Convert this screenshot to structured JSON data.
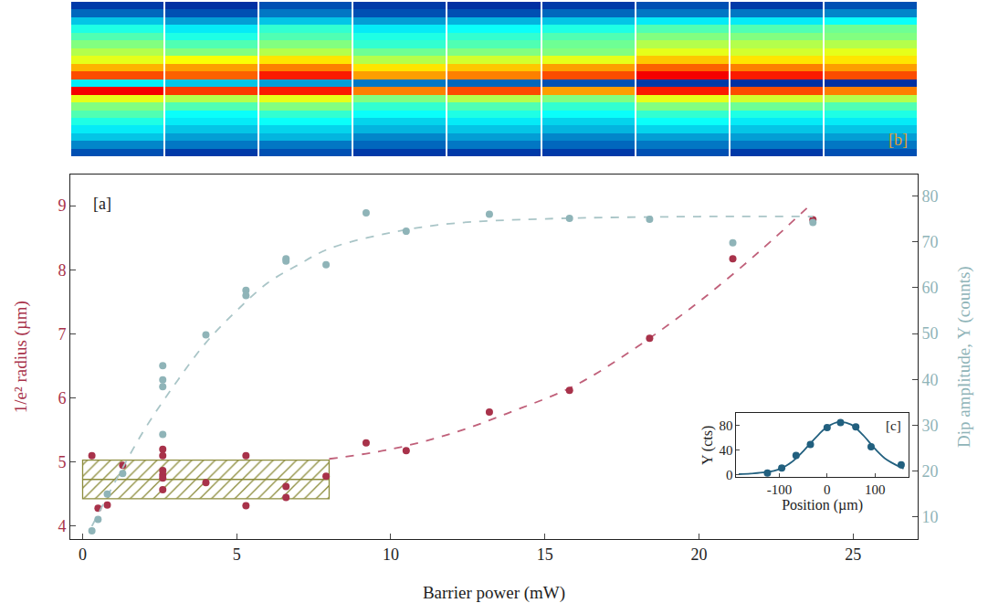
{
  "chart_data": [
    {
      "type": "heatmap",
      "annotations": [
        "[b]"
      ],
      "zlim": [
        0,
        1
      ],
      "cells": [
        [
          0.12,
          0.1,
          0.15,
          0.12,
          0.1,
          0.12,
          0.15,
          0.12,
          0.15
        ],
        [
          0.18,
          0.15,
          0.2,
          0.15,
          0.15,
          0.18,
          0.2,
          0.2,
          0.22
        ],
        [
          0.3,
          0.25,
          0.3,
          0.25,
          0.28,
          0.3,
          0.35,
          0.35,
          0.38
        ],
        [
          0.4,
          0.35,
          0.42,
          0.35,
          0.38,
          0.4,
          0.45,
          0.45,
          0.48
        ],
        [
          0.45,
          0.4,
          0.45,
          0.4,
          0.42,
          0.45,
          0.5,
          0.5,
          0.5
        ],
        [
          0.5,
          0.45,
          0.5,
          0.42,
          0.45,
          0.48,
          0.55,
          0.55,
          0.55
        ],
        [
          0.55,
          0.5,
          0.55,
          0.48,
          0.5,
          0.5,
          0.6,
          0.58,
          0.6
        ],
        [
          0.6,
          0.62,
          0.65,
          0.55,
          0.58,
          0.6,
          0.68,
          0.65,
          0.65
        ],
        [
          0.7,
          0.72,
          0.75,
          0.65,
          0.68,
          0.72,
          0.78,
          0.75,
          0.72
        ],
        [
          0.8,
          0.78,
          0.85,
          0.72,
          0.75,
          0.8,
          0.88,
          0.85,
          0.8
        ],
        [
          0.35,
          0.3,
          0.25,
          0.2,
          0.18,
          0.15,
          0.12,
          0.1,
          0.1
        ],
        [
          0.88,
          0.82,
          0.85,
          0.75,
          0.8,
          0.72,
          0.85,
          0.8,
          0.75
        ],
        [
          0.6,
          0.55,
          0.6,
          0.5,
          0.55,
          0.5,
          0.6,
          0.58,
          0.55
        ],
        [
          0.5,
          0.45,
          0.5,
          0.42,
          0.45,
          0.42,
          0.5,
          0.48,
          0.45
        ],
        [
          0.45,
          0.38,
          0.42,
          0.38,
          0.4,
          0.38,
          0.42,
          0.4,
          0.4
        ],
        [
          0.4,
          0.35,
          0.38,
          0.32,
          0.35,
          0.32,
          0.38,
          0.35,
          0.35
        ],
        [
          0.35,
          0.3,
          0.32,
          0.28,
          0.3,
          0.28,
          0.32,
          0.3,
          0.3
        ],
        [
          0.3,
          0.25,
          0.28,
          0.22,
          0.25,
          0.22,
          0.25,
          0.25,
          0.25
        ],
        [
          0.22,
          0.2,
          0.2,
          0.18,
          0.2,
          0.18,
          0.2,
          0.2,
          0.2
        ],
        [
          0.15,
          0.12,
          0.15,
          0.12,
          0.12,
          0.12,
          0.15,
          0.12,
          0.15
        ]
      ]
    },
    {
      "type": "scatter",
      "annotations": [
        "[a]"
      ],
      "grid": false,
      "x_label": "Barrier power (mW)",
      "y_label": "1/e² radius (µm)",
      "y2_label": "Dip amplitude, Υ (counts)",
      "xlim": [
        -0.4,
        27.1
      ],
      "xticks": [
        0,
        5,
        10,
        15,
        20,
        25
      ],
      "ylim": [
        3.8,
        9.48
      ],
      "yticks": [
        4,
        5,
        6,
        7,
        8,
        9
      ],
      "y2lim": [
        5.2,
        84.6
      ],
      "y2ticks": [
        10,
        20,
        30,
        40,
        50,
        60,
        70,
        80
      ],
      "series": [
        {
          "type": "band",
          "marker": "hatch",
          "color": "#8c8c3c",
          "x": [
            0,
            8
          ],
          "y": [
            4.43,
            5.03
          ],
          "center": 4.73
        },
        {
          "type": "line",
          "line_style": "dash",
          "color": "#c0607a",
          "x": [
            8,
            10,
            12,
            14,
            16,
            18,
            20,
            22,
            23.7
          ],
          "values": [
            5.05,
            5.2,
            5.45,
            5.8,
            6.2,
            6.8,
            7.5,
            8.3,
            9.05
          ]
        },
        {
          "type": "line",
          "line_style": "dash",
          "color": "#a9c5c7",
          "axis": "y2",
          "x": [
            0.3,
            1,
            2,
            3,
            4,
            5,
            6,
            7,
            8,
            10,
            12,
            15,
            20,
            23.7
          ],
          "values": [
            8,
            17,
            29,
            39,
            48,
            55,
            61,
            65,
            68.5,
            72,
            74,
            75,
            75.5,
            75.5
          ]
        },
        {
          "type": "scatter",
          "marker": "circle",
          "color": "#a8324a",
          "x": [
            0.3,
            0.5,
            0.8,
            1.3,
            2.6,
            2.6,
            2.6,
            2.6,
            2.6,
            2.6,
            4,
            5.3,
            5.3,
            6.6,
            6.6,
            7.9,
            9.2,
            10.5,
            13.2,
            15.8,
            18.4,
            21.1,
            23.7
          ],
          "values": [
            5.1,
            4.28,
            4.33,
            4.95,
            5.2,
            5.1,
            4.87,
            4.8,
            4.75,
            4.57,
            4.68,
            5.1,
            4.32,
            4.62,
            4.45,
            4.78,
            5.3,
            5.18,
            5.78,
            6.12,
            6.93,
            8.17,
            8.78
          ]
        },
        {
          "type": "scatter",
          "marker": "circle",
          "color": "#8fb4b8",
          "axis": "y2",
          "x": [
            0.3,
            0.5,
            0.8,
            1.3,
            2.6,
            2.6,
            2.6,
            2.6,
            4,
            5.3,
            5.3,
            6.6,
            6.6,
            7.9,
            9.2,
            10.5,
            13.2,
            15.8,
            18.4,
            21.1,
            23.7
          ],
          "values": [
            7,
            9.5,
            15,
            19.5,
            28,
            38.4,
            39.9,
            43,
            49.7,
            59.4,
            58.3,
            66.3,
            65.8,
            65,
            76.3,
            72.3,
            76,
            75.1,
            74.9,
            69.8,
            74.2
          ]
        }
      ]
    },
    {
      "type": "scatter",
      "annotations": [
        "[c]"
      ],
      "grid": false,
      "x_label": "Position (µm)",
      "y_label": "Υ (cts)",
      "xlim": [
        -190,
        170
      ],
      "xticks": [
        -100,
        0,
        100
      ],
      "ylim": [
        -4,
        99
      ],
      "yticks": [
        0,
        40,
        80
      ],
      "series": [
        {
          "type": "line",
          "line_style": "solid",
          "color": "#22607f",
          "x": [
            -185,
            -160,
            -130,
            -100,
            -75,
            -50,
            -25,
            0,
            25,
            50,
            75,
            100,
            125,
            160
          ],
          "values": [
            1,
            2,
            4,
            9,
            20,
            38,
            59,
            77,
            85,
            81,
            64,
            42,
            24,
            10
          ]
        },
        {
          "type": "scatter",
          "marker": "circle",
          "color": "#22607f",
          "x": [
            -125,
            -95,
            -65,
            -35,
            0,
            28,
            60,
            92,
            155
          ],
          "values": [
            3,
            11,
            31,
            49,
            76,
            84,
            77,
            45,
            16
          ]
        }
      ]
    }
  ]
}
